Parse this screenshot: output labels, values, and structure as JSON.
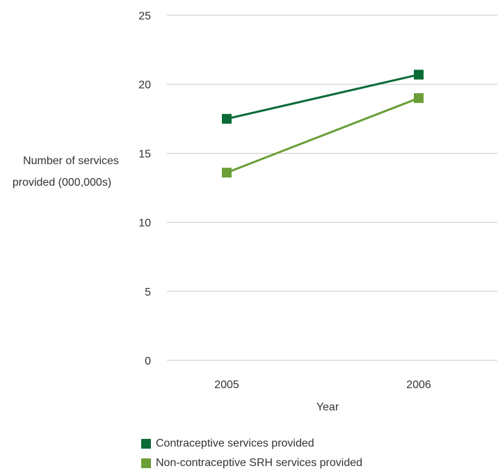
{
  "chart_data": {
    "type": "line",
    "x": [
      "2005",
      "2006"
    ],
    "xlabel": "Year",
    "ylabel": "Number of services provided (000,000s)",
    "ylabel_lines": [
      "Number of services",
      "provided (000,000s)"
    ],
    "ylim": [
      0,
      25
    ],
    "yticks": [
      0,
      5,
      10,
      15,
      20,
      25
    ],
    "grid": true,
    "legend_position": "bottom",
    "series": [
      {
        "name": "Contraceptive services provided",
        "values": [
          17.5,
          20.7
        ],
        "color": "#0a6b36",
        "marker": "square"
      },
      {
        "name": "Non-contraceptive SRH services provided",
        "values": [
          13.6,
          19.0
        ],
        "color": "#6a9f35",
        "marker": "square"
      }
    ]
  },
  "colors": {
    "gridline": "#c8c8c8",
    "text": "#333333"
  }
}
